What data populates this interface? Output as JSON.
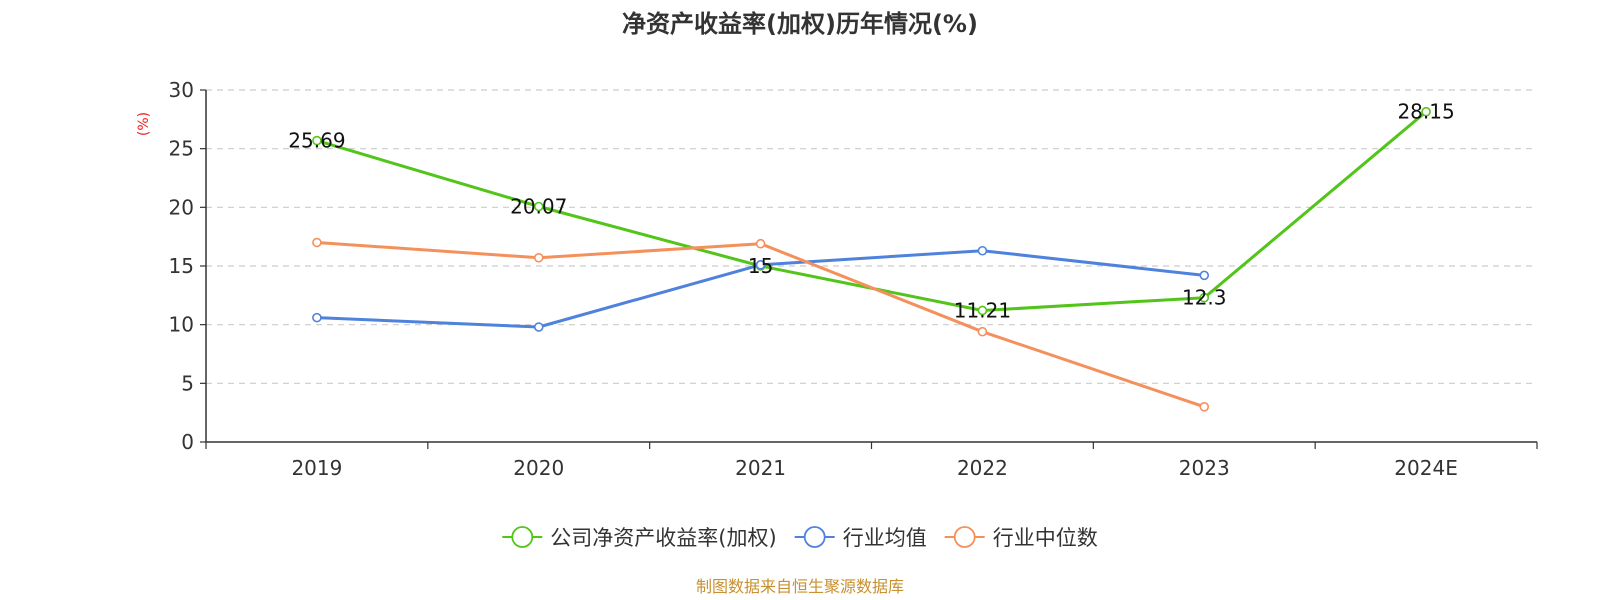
{
  "chart_data": {
    "type": "line",
    "title": "净资产收益率(加权)历年情况(%)",
    "ylabel": "(%)",
    "xlabel": "",
    "categories": [
      "2019",
      "2020",
      "2021",
      "2022",
      "2023",
      "2024E"
    ],
    "ylim": [
      0,
      30
    ],
    "yticks": [
      0,
      5,
      10,
      15,
      20,
      25,
      30
    ],
    "grid": true,
    "legend_position": "bottom",
    "series": [
      {
        "name": "公司净资产收益率(加权)",
        "color": "#52c41a",
        "values": [
          25.69,
          20.07,
          15,
          11.21,
          12.3,
          28.15
        ],
        "labels": [
          "25.69",
          "20.07",
          "15",
          "11.21",
          "12.3",
          "28.15"
        ]
      },
      {
        "name": "行业均值",
        "color": "#4e82dd",
        "values": [
          10.6,
          9.8,
          15.1,
          16.3,
          14.2,
          null
        ]
      },
      {
        "name": "行业中位数",
        "color": "#f4905c",
        "values": [
          17.0,
          15.7,
          16.9,
          9.4,
          3.0,
          null
        ]
      }
    ],
    "source": "制图数据来自恒生聚源数据库"
  }
}
